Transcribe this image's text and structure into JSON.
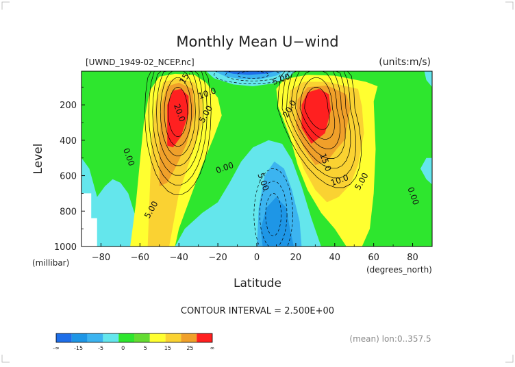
{
  "chart_data": {
    "type": "heatmap",
    "title": "Monthly Mean U−wind",
    "file_label": "[UWND_1949-02_NCEP.nc]",
    "units_label": "(units:m/s)",
    "xlabel": "Latitude",
    "x_unit_label": "(degrees_north)",
    "ylabel": "Level",
    "y_unit_label": "(millibar)",
    "xlim": [
      -90,
      90
    ],
    "ylim": [
      1000,
      10
    ],
    "y_inverted": true,
    "x_ticks": [
      -80,
      -60,
      -40,
      -20,
      0,
      20,
      40,
      60,
      80
    ],
    "y_ticks": [
      200,
      400,
      600,
      800,
      1000
    ],
    "contour_interval_text": "CONTOUR INTERVAL = 2.500E+00",
    "contour_interval": 2.5,
    "contour_labels": [
      {
        "text": "15.0",
        "lat": -35,
        "lev": 40
      },
      {
        "text": "20.0",
        "lat": -41,
        "lev": 250
      },
      {
        "text": "10.0",
        "lat": -25,
        "lev": 150
      },
      {
        "text": "5.00",
        "lat": -25,
        "lev": 260
      },
      {
        "text": "0.00",
        "lat": -67,
        "lev": 500
      },
      {
        "text": "0.00",
        "lat": -16,
        "lev": 570
      },
      {
        "text": "5.00",
        "lat": -53,
        "lev": 800
      },
      {
        "text": "5.00",
        "lat": 2,
        "lev": 640
      },
      {
        "text": "5.00",
        "lat": 13,
        "lev": 70
      },
      {
        "text": "20.0",
        "lat": 18,
        "lev": 230
      },
      {
        "text": "15.0",
        "lat": 34,
        "lev": 530
      },
      {
        "text": "10.0",
        "lat": 43,
        "lev": 640
      },
      {
        "text": "5.00",
        "lat": 55,
        "lev": 640
      },
      {
        "text": "0.00",
        "lat": 79,
        "lev": 720
      }
    ],
    "jets": [
      {
        "hemisphere": "south",
        "lat": -40,
        "lev": 200,
        "max_u": 30
      },
      {
        "hemisphere": "north",
        "lat": 30,
        "lev": 200,
        "max_u": 30
      }
    ],
    "colorbar": {
      "colors": [
        "#1e6ee8",
        "#1e96e6",
        "#3cb4f0",
        "#64e6ec",
        "#2ee62e",
        "#64dc32",
        "#ffff30",
        "#fad232",
        "#f0a02a",
        "#ff2020"
      ],
      "tick_labels": [
        "-∞",
        "-15",
        "-5",
        "0",
        "5",
        "15",
        "25",
        "∞"
      ]
    },
    "footer": "(mean) lon:0..357.5"
  }
}
